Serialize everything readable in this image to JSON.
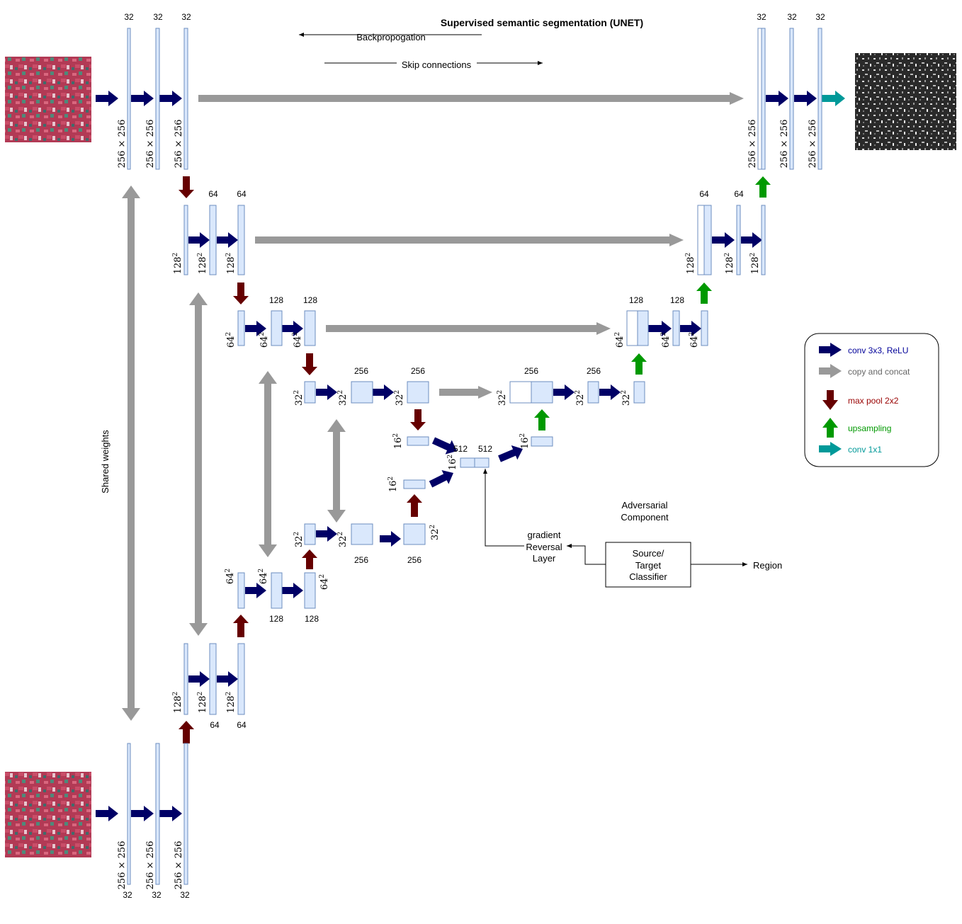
{
  "title": "Supervised semantic segmentation (UNET)",
  "backprop_label": "Backpropogation",
  "skip_label": "Skip connections",
  "shared_weights_label": "Shared weights",
  "adversarial_label_1": "Adversarial",
  "adversarial_label_2": "Component",
  "grl_label_1": "gradient",
  "grl_label_2": "Reversal",
  "grl_label_3": "Layer",
  "classifier_label_1": "Source/",
  "classifier_label_2": "Target",
  "classifier_label_3": "Classifier",
  "region_label": "Region",
  "legend": {
    "items": [
      {
        "label": "conv 3x3, ReLU",
        "color": "#000066",
        "icon": "arrow-right",
        "text_color": "#000099"
      },
      {
        "label": "copy and concat",
        "color": "#999999",
        "icon": "arrow-right",
        "text_color": "#666666"
      },
      {
        "label": "max pool 2x2",
        "color": "#660000",
        "icon": "arrow-down",
        "text_color": "#990000"
      },
      {
        "label": "upsampling",
        "color": "#009900",
        "icon": "arrow-up",
        "text_color": "#009900"
      },
      {
        "label": "conv 1x1",
        "color": "#009999",
        "icon": "arrow-right",
        "text_color": "#009999"
      }
    ]
  },
  "labels": {
    "c32": "32",
    "c64": "64",
    "c128": "128",
    "c256": "256",
    "c512": "512",
    "s256": "256 × 256",
    "s128": "128",
    "s64": "64",
    "s32": "32",
    "s16": "16",
    "sq": "2"
  },
  "colors": {
    "conv": "#000066",
    "copy": "#999999",
    "pool": "#660000",
    "up": "#009900",
    "conv1x1": "#009999",
    "box_fill": "#dae8fc",
    "box_stroke": "#6c8ebf"
  },
  "images": {
    "input_top": "satellite-image-input",
    "input_bottom": "satellite-image-input",
    "output": "segmentation-mask-output"
  }
}
